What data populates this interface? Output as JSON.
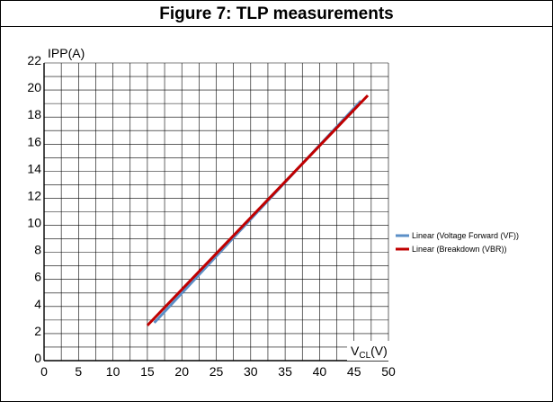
{
  "chart_data": {
    "type": "line",
    "title": "Figure 7: TLP measurements",
    "ylabel": {
      "main": "I",
      "sub": "PP",
      "unit": "(A)"
    },
    "xlabel": {
      "main": "V",
      "sub": "CL",
      "unit": "(V)"
    },
    "xlim": [
      0,
      50
    ],
    "ylim": [
      0,
      22
    ],
    "x_ticks": [
      0,
      5,
      10,
      15,
      20,
      25,
      30,
      35,
      40,
      45,
      50
    ],
    "y_ticks": [
      0,
      2,
      4,
      6,
      8,
      10,
      12,
      14,
      16,
      18,
      20,
      22
    ],
    "x_minor_step": 2.5,
    "y_minor_step": 1,
    "grid": true,
    "legend_position": "right",
    "series": [
      {
        "name": "Linear (Voltage Forward (VF))",
        "color": "#5b8fc7",
        "x": [
          16,
          46
        ],
        "y": [
          2.8,
          19.2
        ]
      },
      {
        "name": "Linear (Breakdown (VBR))",
        "color": "#c00000",
        "x": [
          15,
          47
        ],
        "y": [
          2.6,
          19.6
        ]
      }
    ]
  }
}
